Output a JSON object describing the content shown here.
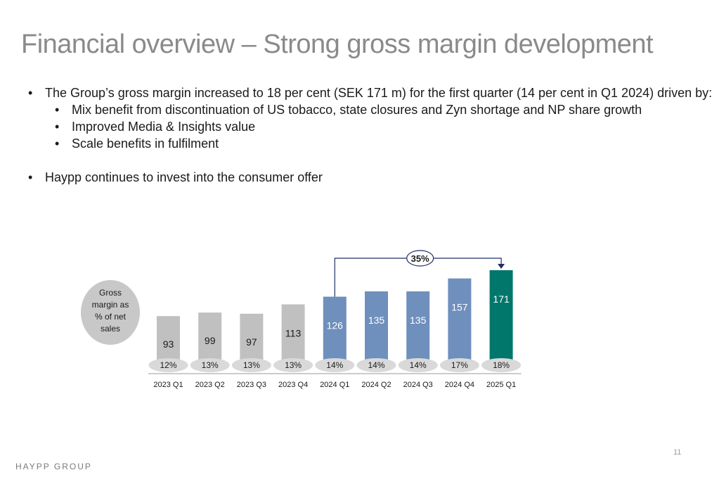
{
  "title": "Financial overview – Strong gross margin development",
  "bullets": [
    {
      "level": 1,
      "text": "The Group’s gross margin increased to 18 per cent (SEK 171 m) for the first quarter (14 per cent in Q1 2024) driven by:"
    },
    {
      "level": 2,
      "text": "Mix benefit from discontinuation of US tobacco, state closures and Zyn shortage and NP share growth"
    },
    {
      "level": 2,
      "text": "Improved Media & Insights value"
    },
    {
      "level": 2,
      "text": "Scale benefits in fulfilment"
    },
    {
      "level": 1,
      "text": "Haypp continues to invest into the consumer offer"
    }
  ],
  "legend_circle": [
    "Gross",
    "margin as",
    "% of net",
    "sales"
  ],
  "chart_data": {
    "type": "bar",
    "categories": [
      "2023 Q1",
      "2023 Q2",
      "2023 Q3",
      "2023 Q4",
      "2024 Q1",
      "2024 Q2",
      "2024 Q3",
      "2024 Q4",
      "2025 Q1"
    ],
    "values": [
      93,
      99,
      97,
      113,
      126,
      135,
      135,
      157,
      171
    ],
    "margin_labels": [
      "12%",
      "13%",
      "13%",
      "13%",
      "14%",
      "14%",
      "14%",
      "17%",
      "18%"
    ],
    "bar_colors": [
      "#c0c0c0",
      "#c0c0c0",
      "#c0c0c0",
      "#c0c0c0",
      "#6f8fbd",
      "#6f8fbd",
      "#6f8fbd",
      "#6f8fbd",
      "#00776a"
    ],
    "label_colors": [
      "#1a1a1a",
      "#1a1a1a",
      "#1a1a1a",
      "#1a1a1a",
      "#ffffff",
      "#ffffff",
      "#ffffff",
      "#ffffff",
      "#ffffff"
    ],
    "growth_annotation": {
      "from": "2024 Q1",
      "to": "2025 Q1",
      "label": "35%"
    },
    "title": "",
    "xlabel": "",
    "ylabel": "",
    "ylim": [
      0,
      171
    ]
  },
  "footer": {
    "logo": "HAYPP GROUP",
    "page": "11"
  },
  "colors": {
    "title": "#8a8a8a",
    "arrow": "#1f2d6b",
    "oval": "#d9d9d9",
    "circle": "#c8c8c8"
  }
}
